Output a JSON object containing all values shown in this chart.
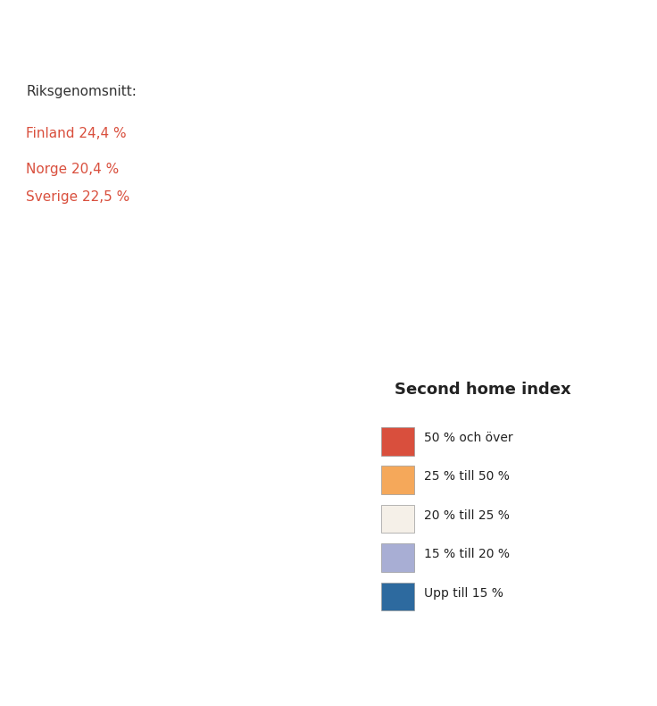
{
  "title": "",
  "legend_title": "Second home index",
  "legend_items": [
    {
      "label": "50 % och över",
      "color": "#d94f3d"
    },
    {
      "label": "25 % till 50 %",
      "color": "#f5a85a"
    },
    {
      "label": "20 % till 25 %",
      "color": "#f5f0e8"
    },
    {
      "label": "15 % till 20 %",
      "color": "#a8aed4"
    },
    {
      "label": "Upp till 15 %",
      "color": "#2d6a9f"
    }
  ],
  "annotation_title": "Riksgenomsnitt:",
  "annotation_lines": [
    "Finland 24,4 %",
    "Norge 20,4 %",
    "Sverige 22,5 %"
  ],
  "annotation_colors": [
    "#d94f3d",
    "#d94f3d",
    "#d94f3d"
  ],
  "background_color": "#ffffff",
  "map_edge_color": "#ffffff",
  "map_edge_width": 0.3,
  "figsize": [
    7.36,
    7.9
  ],
  "dpi": 100
}
